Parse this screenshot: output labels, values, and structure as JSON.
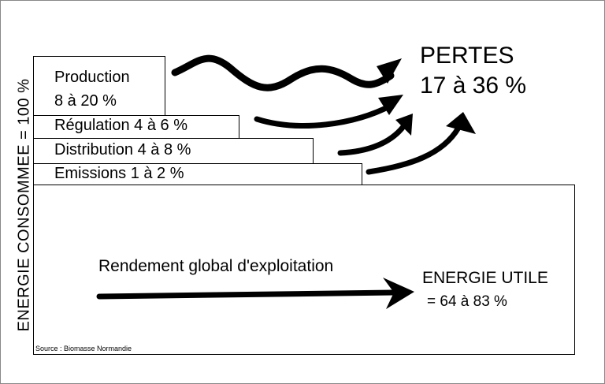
{
  "left_label": "ENERGIE CONSOMMEE = 100 %",
  "losses": [
    {
      "label": "Production",
      "value": "8 à 20 %"
    },
    {
      "label": "Régulation 4 à 6 %"
    },
    {
      "label": "Distribution 4 à 8 %"
    },
    {
      "label": "Emissions 1 à 2 %"
    }
  ],
  "pertes": {
    "title": "PERTES",
    "value": "17 à 36 %"
  },
  "main": {
    "rendement": "Rendement global d'exploitation",
    "utile_title": "ENERGIE UTILE",
    "utile_value": "= 64 à 83 %"
  },
  "source": "Source : Biomasse Normandie",
  "colors": {
    "stroke": "#000000",
    "background": "#ffffff"
  }
}
